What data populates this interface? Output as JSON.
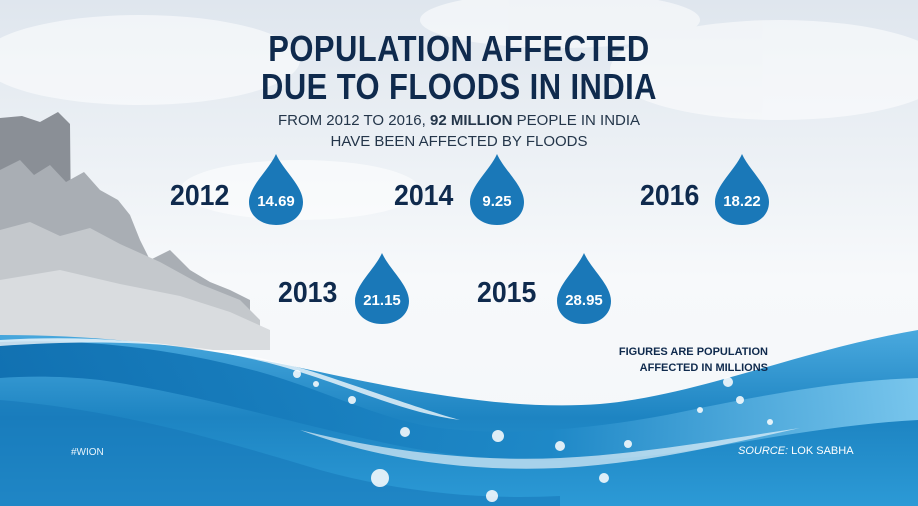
{
  "chart_data": {
    "type": "bar",
    "title": "POPULATION AFFECTED DUE TO FLOODS IN INDIA",
    "title_lines": [
      "POPULATION AFFECTED",
      "DUE TO FLOODS IN INDIA"
    ],
    "subtitle": {
      "line1_pre": "FROM 2012 TO 2016, ",
      "line1_bold": "92 MILLION",
      "line1_post": " PEOPLE IN INDIA",
      "line2": "HAVE BEEN AFFECTED BY FLOODS"
    },
    "categories": [
      "2012",
      "2013",
      "2014",
      "2015",
      "2016"
    ],
    "values": [
      14.69,
      21.15,
      9.25,
      28.95,
      18.22
    ],
    "value_labels": [
      "14.69",
      "21.15",
      "9.25",
      "28.95",
      "18.22"
    ],
    "note_lines": [
      "FIGURES ARE POPULATION",
      "AFFECTED IN MILLIONS"
    ]
  },
  "footer": {
    "hashtag": "#WION",
    "source_label": "SOURCE:",
    "source_value": " LOK SABHA"
  },
  "colors": {
    "title": "#0f2a4d",
    "drop": "#1a78b8",
    "water_dark": "#1b86c4",
    "water_light": "#5bb7e6"
  }
}
